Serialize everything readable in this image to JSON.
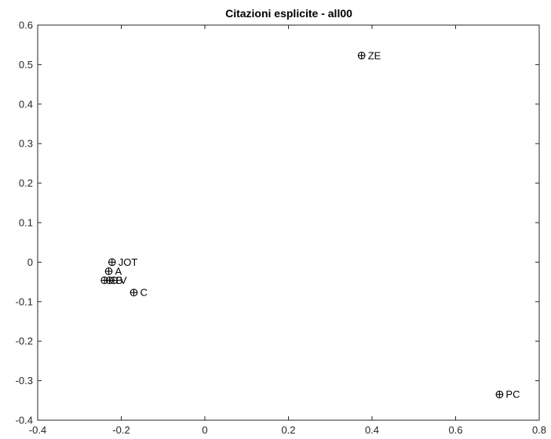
{
  "chart_data": {
    "type": "scatter",
    "title": "Citazioni esplicite - all00",
    "xlabel": "",
    "ylabel": "",
    "xlim": [
      -0.4,
      0.8
    ],
    "ylim": [
      -0.4,
      0.6
    ],
    "x_ticks": [
      -0.4,
      -0.2,
      0,
      0.2,
      0.4,
      0.6,
      0.8
    ],
    "x_tick_labels": [
      "-0.4",
      "-0.2",
      "0",
      "0.2",
      "0.4",
      "0.6",
      "0.8"
    ],
    "y_ticks": [
      -0.4,
      -0.3,
      -0.2,
      -0.1,
      0,
      0.1,
      0.2,
      0.3,
      0.4,
      0.5,
      0.6
    ],
    "y_tick_labels": [
      "-0.4",
      "-0.3",
      "-0.2",
      "-0.1",
      "0",
      "0.1",
      "0.2",
      "0.3",
      "0.4",
      "0.5",
      "0.6"
    ],
    "grid": false,
    "marker": "circle-plus",
    "marker_color": "#000000",
    "points": [
      {
        "label": "ZE",
        "x": 0.375,
        "y": 0.523
      },
      {
        "label": "JOT",
        "x": -0.222,
        "y": 0.0
      },
      {
        "label": "A",
        "x": -0.23,
        "y": -0.023
      },
      {
        "label": "",
        "x": -0.24,
        "y": -0.046
      },
      {
        "label": "B",
        "x": -0.228,
        "y": -0.046
      },
      {
        "label": "V",
        "x": -0.218,
        "y": -0.046
      },
      {
        "label": "C",
        "x": -0.17,
        "y": -0.077
      },
      {
        "label": "PC",
        "x": 0.705,
        "y": -0.335
      }
    ]
  }
}
